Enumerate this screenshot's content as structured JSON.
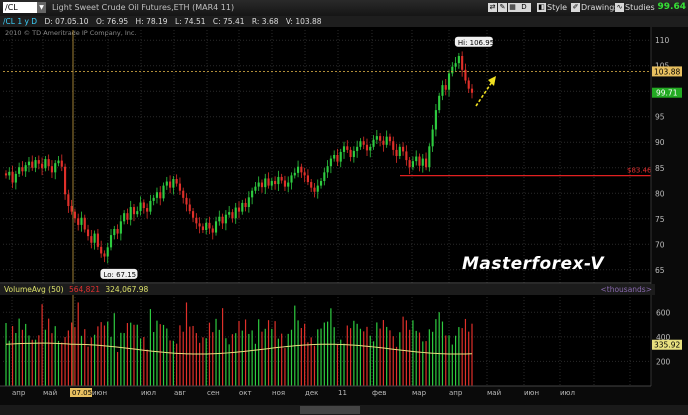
{
  "header": {
    "symbol": "/CL",
    "description": "Light Sweet Crude Oil Futures,ETH (MAR4 11)",
    "period_label": "D",
    "buttons": [
      "Style",
      "Drawings",
      "Studies"
    ],
    "last_price": "99.64"
  },
  "info_bar": {
    "study": "/CL 1 y D",
    "date": "D: 07.05.10",
    "open": "O: 76.95",
    "high": "H: 78.19",
    "low": "L: 74.51",
    "close": "C: 75.41",
    "range": "R: 3.68",
    "value": "V: 103.88"
  },
  "copyright": "2010 © TD Ameritrade IP Company, Inc.",
  "watermark": "Masterforex-V",
  "price_axis": {
    "labels": [
      "110",
      "105",
      "100",
      "95",
      "90",
      "85",
      "80",
      "75",
      "70",
      "65"
    ],
    "current_price_box": "103.88",
    "green_box": "99.71",
    "support_label": "$83.46"
  },
  "annotations": {
    "high": "Hi: 106.95",
    "low": "Lo: 67.15"
  },
  "volume_pane": {
    "title": "VolumeAvg (50)",
    "value1": "564,821",
    "value2": "324,067.98",
    "units": "<thousands>",
    "axis_labels": [
      "600",
      "400",
      "200"
    ],
    "avg_box": "335.92"
  },
  "time_axis": {
    "labels": [
      "апр",
      "май",
      "07.05",
      "июн",
      "июл",
      "авг",
      "сен",
      "окт",
      "ноя",
      "дек",
      "11",
      "фев",
      "мар",
      "апр",
      "май",
      "июн",
      "июл"
    ]
  },
  "chart_data": {
    "type": "candlestick",
    "title": "Light Sweet Crude Oil Futures,ETH (MAR4 11)",
    "xlabel": "",
    "ylabel": "",
    "ylim": [
      63,
      112
    ],
    "support_level": 83.46,
    "series_close": [
      83.5,
      84.2,
      82.1,
      83.8,
      85.1,
      84.3,
      85.5,
      86.2,
      85.0,
      86.5,
      85.8,
      84.9,
      86.7,
      85.3,
      84.1,
      85.9,
      86.4,
      85.2,
      79.8,
      77.5,
      76.4,
      75.1,
      73.8,
      75.2,
      72.9,
      71.6,
      70.3,
      72.1,
      69.5,
      68.2,
      67.6,
      69.4,
      71.8,
      73.0,
      72.1,
      74.5,
      76.1,
      74.8,
      77.3,
      75.9,
      76.5,
      78.2,
      77.1,
      76.4,
      78.5,
      79.1,
      80.2,
      79.0,
      81.5,
      82.3,
      81.1,
      82.8,
      81.9,
      80.5,
      79.1,
      77.8,
      76.5,
      75.2,
      74.1,
      73.5,
      72.8,
      74.2,
      73.1,
      72.3,
      74.5,
      75.4,
      74.1,
      75.8,
      76.3,
      75.1,
      77.2,
      76.4,
      78.1,
      77.3,
      79.2,
      80.5,
      81.3,
      82.1,
      81.2,
      82.9,
      81.5,
      82.4,
      81.8,
      83.2,
      82.5,
      81.3,
      82.1,
      83.5,
      84.0,
      85.2,
      84.1,
      83.5,
      82.2,
      81.1,
      80.3,
      81.5,
      82.4,
      84.1,
      85.3,
      86.8,
      87.5,
      86.2,
      88.1,
      89.2,
      88.5,
      87.1,
      88.3,
      89.1,
      90.2,
      89.5,
      88.4,
      89.1,
      90.5,
      91.2,
      90.3,
      89.5,
      91.1,
      90.2,
      88.5,
      87.3,
      89.1,
      88.2,
      86.5,
      85.1,
      86.3,
      87.2,
      85.4,
      86.8,
      85.1,
      89.2,
      92.5,
      96.3,
      99.1,
      101.2,
      100.3,
      103.5,
      104.8,
      105.5,
      106.9,
      104.2,
      102.1,
      100.5,
      99.7
    ],
    "volume_avg": 335.92,
    "volume_ylim": [
      0,
      700
    ]
  }
}
